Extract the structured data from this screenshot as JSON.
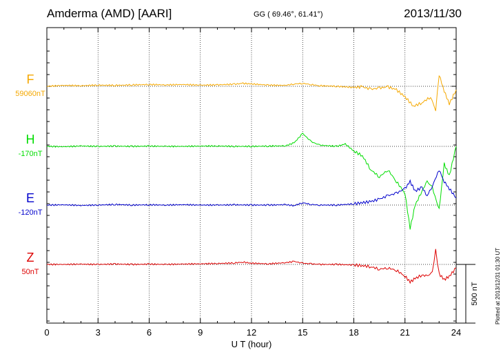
{
  "header": {
    "station": "Amderma (AMD)  [AARI]",
    "coords": "GG ( 69.46°,  61.41°)",
    "date": "2013/11/30"
  },
  "footer_note": "Plotted at 2013/12/31 01:30 UT",
  "chart_data": {
    "type": "line",
    "title": "",
    "xlabel": "U T (hour)",
    "ylabel": "",
    "xlim": [
      0,
      24
    ],
    "x_ticks": [
      0,
      3,
      6,
      9,
      12,
      15,
      18,
      21,
      24
    ],
    "x_tick_labels": [
      "0",
      "3",
      "6",
      "9",
      "12",
      "15",
      "18",
      "21",
      "24"
    ],
    "scale_bar": {
      "label": "500 nT",
      "value_nT": 500
    },
    "grid": true,
    "colors": {
      "F": "#f5a800",
      "H": "#00dd00",
      "E": "#0000cc",
      "Z": "#dd0000"
    },
    "series": [
      {
        "name": "F",
        "baseline_label": "59060nT",
        "x": [
          0,
          1,
          2,
          3,
          4,
          5,
          6,
          7,
          8,
          9,
          10,
          11,
          11.5,
          12,
          13,
          14,
          14.5,
          15,
          15.5,
          16,
          17,
          17.5,
          18,
          18.5,
          19,
          19.5,
          20,
          20.5,
          21,
          21.5,
          22,
          22.5,
          22.8,
          23,
          23.3,
          23.6,
          24
        ],
        "values": [
          0,
          8,
          5,
          10,
          8,
          12,
          15,
          12,
          15,
          10,
          12,
          18,
          25,
          20,
          10,
          8,
          20,
          25,
          15,
          5,
          0,
          -5,
          -10,
          -5,
          -25,
          -15,
          -5,
          -30,
          -90,
          -170,
          -140,
          -90,
          -200,
          100,
          -40,
          -150,
          -30
        ]
      },
      {
        "name": "H",
        "baseline_label": "-170nT",
        "x": [
          0,
          1,
          2,
          3,
          4,
          5,
          6,
          7,
          8,
          9,
          10,
          11,
          12,
          13,
          14,
          14.5,
          15,
          15.5,
          16,
          17,
          17.5,
          18,
          18.5,
          19,
          19.5,
          20,
          20.5,
          21,
          21.3,
          21.6,
          22,
          22.3,
          22.6,
          23,
          23.3,
          23.6,
          24
        ],
        "values": [
          0,
          -3,
          3,
          0,
          2,
          0,
          2,
          0,
          0,
          2,
          3,
          0,
          0,
          2,
          5,
          30,
          110,
          40,
          10,
          0,
          20,
          -40,
          -80,
          -200,
          -260,
          -200,
          -300,
          -400,
          -700,
          -500,
          -380,
          -300,
          -350,
          -540,
          -150,
          -250,
          0
        ]
      },
      {
        "name": "E",
        "baseline_label": "-120nT",
        "x": [
          0,
          1,
          2,
          3,
          4,
          5,
          6,
          7,
          8,
          9,
          10,
          11,
          12,
          13,
          14,
          14.5,
          15,
          15.5,
          16,
          17,
          18,
          18.5,
          19,
          19.5,
          20,
          20.5,
          21,
          21.3,
          21.6,
          22,
          22.3,
          22.6,
          23,
          23.3,
          23.6,
          24
        ],
        "values": [
          0,
          2,
          -3,
          0,
          5,
          0,
          2,
          0,
          3,
          0,
          0,
          2,
          0,
          0,
          3,
          -5,
          20,
          5,
          0,
          0,
          10,
          20,
          30,
          50,
          80,
          100,
          140,
          200,
          120,
          150,
          80,
          160,
          300,
          200,
          140,
          60
        ]
      },
      {
        "name": "Z",
        "baseline_label": "50nT",
        "x": [
          0,
          1,
          2,
          3,
          4,
          5,
          6,
          7,
          8,
          9,
          10,
          11,
          11.5,
          12,
          13,
          14,
          14.5,
          15,
          15.5,
          16,
          17,
          18,
          18.5,
          19,
          19.5,
          20,
          20.5,
          21,
          21.3,
          21.6,
          22,
          22.3,
          22.6,
          22.8,
          23,
          23.3,
          23.6,
          24
        ],
        "values": [
          0,
          0,
          2,
          0,
          3,
          0,
          2,
          0,
          3,
          5,
          8,
          12,
          20,
          10,
          5,
          15,
          25,
          10,
          5,
          0,
          0,
          -5,
          -10,
          -20,
          -40,
          -30,
          -50,
          -100,
          -150,
          -120,
          -90,
          -100,
          -70,
          120,
          -80,
          -130,
          -100,
          -30
        ]
      }
    ]
  }
}
